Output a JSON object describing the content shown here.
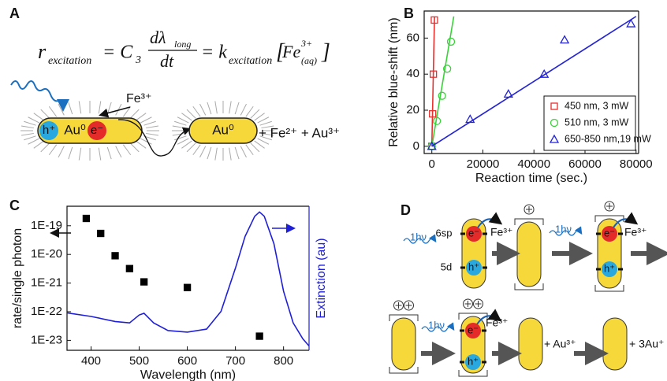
{
  "panel_a": {
    "label": "A",
    "equation": {
      "r": "r",
      "r_sub": "excitation",
      "c": "= C",
      "c_sub": "3",
      "num": "dλ",
      "num_sub": "long",
      "den": "dt",
      "k": "= k",
      "k_sub": "excitation",
      "fe": "Fe",
      "fe_sup": "3+",
      "fe_sub": "(aq)",
      "open": "[",
      "close": "]"
    },
    "fe3": "Fe³⁺",
    "hole": "h⁺",
    "rod1": "Au⁰",
    "electron": "e⁻",
    "rod2": "Au⁰",
    "products": "+ Fe²⁺ + Au³⁺"
  },
  "panel_d": {
    "label": "D",
    "level_sp": "6sp",
    "level_d": "5d",
    "photon": [
      "1hν",
      "1hν",
      "1hν"
    ],
    "electron": [
      "e⁻",
      "e⁻",
      "e⁻"
    ],
    "hole": [
      "h⁺",
      "h⁺",
      "h⁺"
    ],
    "fe3": [
      "Fe³⁺",
      "Fe³⁺",
      "Fe³⁺"
    ],
    "au3": "+ Au³⁺",
    "au1": "+ 3Au⁺"
  },
  "chart_data": [
    {
      "label": "B",
      "type": "scatter",
      "xlabel": "Reaction time (sec.)",
      "ylabel": "Relative blue-shift (nm)",
      "xlim": [
        -3000,
        81000
      ],
      "ylim": [
        -4,
        75
      ],
      "xticks": [
        0,
        20000,
        40000,
        60000,
        80000
      ],
      "yticks": [
        0,
        20,
        40,
        60
      ],
      "legend": "lower right",
      "series": [
        {
          "name": "450 nm, 3 mW",
          "color": "#e8312f",
          "marker": "square",
          "x": [
            0,
            300,
            600,
            1000
          ],
          "values": [
            0,
            18,
            40,
            70
          ],
          "fit": {
            "x": [
              0,
              1050
            ],
            "y": [
              0,
              72
            ]
          }
        },
        {
          "name": "510 nm, 3 mW",
          "color": "#3bd13b",
          "marker": "circle",
          "x": [
            0,
            2000,
            4000,
            6000,
            7500
          ],
          "values": [
            0,
            14,
            28,
            43,
            58
          ],
          "fit": {
            "x": [
              0,
              8600
            ],
            "y": [
              0,
              72
            ]
          }
        },
        {
          "name": "650-850 nm,19 mW",
          "color": "#2424d6",
          "marker": "triangle",
          "x": [
            0,
            15000,
            30000,
            44000,
            52000,
            78000
          ],
          "values": [
            0,
            15,
            29,
            40,
            59,
            68
          ],
          "fit": {
            "x": [
              0,
              80000
            ],
            "y": [
              0,
              72
            ]
          }
        }
      ]
    },
    {
      "label": "C",
      "type": "scatter",
      "xlabel": "Wavelength (nm)",
      "ylabel": "rate/single photon",
      "y2label": "Extinction (au)",
      "log_y": true,
      "xlim": [
        350,
        853
      ],
      "ylim": [
        4.5e-24,
        4.8e-19
      ],
      "y2lim": [
        0,
        1
      ],
      "xticks": [
        400,
        500,
        600,
        700,
        800
      ],
      "yticks": [
        {
          "value": 1e-19,
          "label": "1E-19"
        },
        {
          "value": 1e-20,
          "label": "1E-20"
        },
        {
          "value": 1e-21,
          "label": "1E-21"
        },
        {
          "value": 1e-22,
          "label": "1E-22"
        },
        {
          "value": 1e-23,
          "label": "1E-23"
        }
      ],
      "series": [
        {
          "color": "#000000",
          "marker": "square",
          "x": [
            390,
            420,
            450,
            480,
            510,
            600,
            750
          ],
          "values": [
            1.8e-19,
            5.4e-20,
            9e-21,
            3.2e-21,
            1.1e-21,
            7e-22,
            1.4e-23
          ]
        },
        {
          "color": "#1f1fd8",
          "marker": "none",
          "axis": "y2",
          "x": [
            350,
            400,
            450,
            480,
            500,
            510,
            530,
            560,
            600,
            640,
            670,
            700,
            720,
            740,
            750,
            760,
            780,
            800,
            820,
            840,
            853
          ],
          "values": [
            0.26,
            0.235,
            0.2,
            0.19,
            0.245,
            0.257,
            0.19,
            0.137,
            0.126,
            0.147,
            0.27,
            0.57,
            0.79,
            0.93,
            0.96,
            0.93,
            0.74,
            0.41,
            0.19,
            0.08,
            0.03
          ]
        }
      ]
    }
  ]
}
